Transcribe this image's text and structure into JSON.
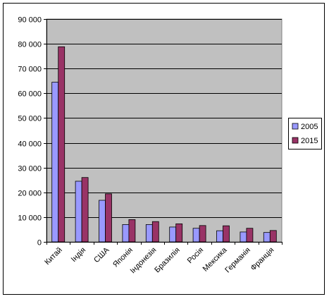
{
  "chart_data": {
    "type": "bar",
    "title": "",
    "xlabel": "",
    "ylabel": "",
    "categories": [
      "Китай",
      "Індія",
      "США",
      "Японія",
      "Індонезія",
      "Бразилія",
      "Росія",
      "Мексика",
      "Германія",
      "Франція"
    ],
    "series": [
      {
        "name": "2005",
        "color": "#9999ff",
        "values": [
          64500,
          24500,
          16800,
          7000,
          7000,
          6000,
          5500,
          4500,
          4000,
          3800
        ]
      },
      {
        "name": "2015",
        "color": "#993366",
        "values": [
          78800,
          26000,
          19400,
          9000,
          8200,
          7300,
          6600,
          6500,
          5500,
          4600
        ]
      }
    ],
    "ylim": [
      0,
      90000
    ],
    "yticks": [
      0,
      10000,
      20000,
      30000,
      40000,
      50000,
      60000,
      70000,
      80000,
      90000
    ],
    "ytick_labels": [
      "0",
      "10 000",
      "20 000",
      "30 000",
      "40 000",
      "50 000",
      "60 000",
      "70 000",
      "80 000",
      "90 000"
    ],
    "grid": true,
    "legend_position": "right",
    "plot_background": "#c0c0c0"
  }
}
